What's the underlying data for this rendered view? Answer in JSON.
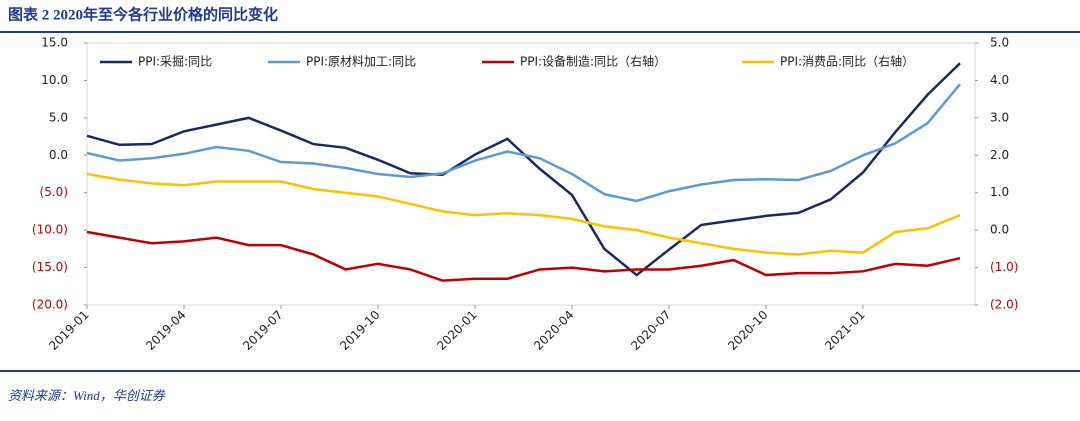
{
  "title": "图表 2   2020年至今各行业价格的同比变化",
  "source": "资料来源：Wind，华创证券",
  "chart_data": {
    "type": "line",
    "categories": [
      "2019-01",
      null,
      null,
      "2019-04",
      null,
      null,
      "2019-07",
      null,
      null,
      "2019-10",
      null,
      null,
      "2020-01",
      null,
      null,
      "2020-04",
      null,
      null,
      "2020-07",
      null,
      null,
      "2020-10",
      null,
      null,
      "2021-01",
      null,
      null,
      null
    ],
    "series": [
      {
        "name": "PPI:采掘:同比",
        "color": "#1b2a5e",
        "values": [
          2.6,
          1.4,
          1.5,
          3.2,
          4.1,
          5.0,
          3.3,
          1.5,
          1.0,
          -0.6,
          -2.4,
          -2.6,
          0.1,
          2.2,
          -1.8,
          -5.3,
          -12.5,
          -16.0,
          -12.6,
          -9.3,
          -8.7,
          -8.1,
          -7.7,
          -5.9,
          -2.3,
          3.1,
          8.1,
          12.3
        ]
      },
      {
        "name": "PPI:原材料加工:同比",
        "color": "#5b9bd5",
        "values": [
          0.3,
          -0.7,
          -0.4,
          0.2,
          1.1,
          0.6,
          -0.9,
          -1.1,
          -1.7,
          -2.5,
          -2.9,
          -2.4,
          -0.7,
          0.5,
          -0.4,
          -2.5,
          -5.2,
          -6.1,
          -4.8,
          -3.9,
          -3.3,
          -3.2,
          -3.3,
          -2.1,
          0.0,
          1.6,
          4.3,
          9.5
        ]
      },
      {
        "name": "PPI:设备制造:同比（右轴）",
        "color": "#c00000",
        "axis": "y2",
        "values": [
          -0.05,
          -0.2,
          -0.35,
          -0.3,
          -0.2,
          -0.4,
          -0.4,
          -0.65,
          -1.05,
          -0.9,
          -1.05,
          -1.35,
          -1.3,
          -1.3,
          -1.05,
          -1.0,
          -1.1,
          -1.05,
          -1.05,
          -0.95,
          -0.8,
          -1.2,
          -1.15,
          -1.15,
          -1.1,
          -0.9,
          -0.95,
          -0.75
        ]
      },
      {
        "name": "PPI:消费品:同比（右轴）",
        "color": "#ffc000",
        "axis": "y2",
        "values": [
          1.5,
          1.35,
          1.25,
          1.2,
          1.3,
          1.3,
          1.3,
          1.1,
          1.0,
          0.9,
          0.7,
          0.5,
          0.4,
          0.45,
          0.4,
          0.3,
          0.1,
          0.0,
          -0.2,
          -0.35,
          -0.5,
          -0.6,
          -0.65,
          -0.55,
          -0.6,
          -0.05,
          0.05,
          0.4
        ]
      }
    ],
    "ylim": [
      -20,
      15
    ],
    "yticks": [
      {
        "value": 15,
        "label": "15.0"
      },
      {
        "value": 10,
        "label": "10.0"
      },
      {
        "value": 5,
        "label": "5.0"
      },
      {
        "value": 0,
        "label": "0.0"
      },
      {
        "value": -5,
        "label": "(5.0)"
      },
      {
        "value": -10,
        "label": "(10.0)"
      },
      {
        "value": -15,
        "label": "(15.0)"
      },
      {
        "value": -20,
        "label": "(20.0)"
      }
    ],
    "y2lim": [
      -2,
      5
    ],
    "y2ticks": [
      {
        "value": 5,
        "label": "5.0"
      },
      {
        "value": 4,
        "label": "4.0"
      },
      {
        "value": 3,
        "label": "3.0"
      },
      {
        "value": 2,
        "label": "2.0"
      },
      {
        "value": 1,
        "label": "1.0"
      },
      {
        "value": 0,
        "label": "0.0"
      },
      {
        "value": -1,
        "label": "(1.0)"
      },
      {
        "value": -2,
        "label": "(2.0)"
      }
    ]
  }
}
